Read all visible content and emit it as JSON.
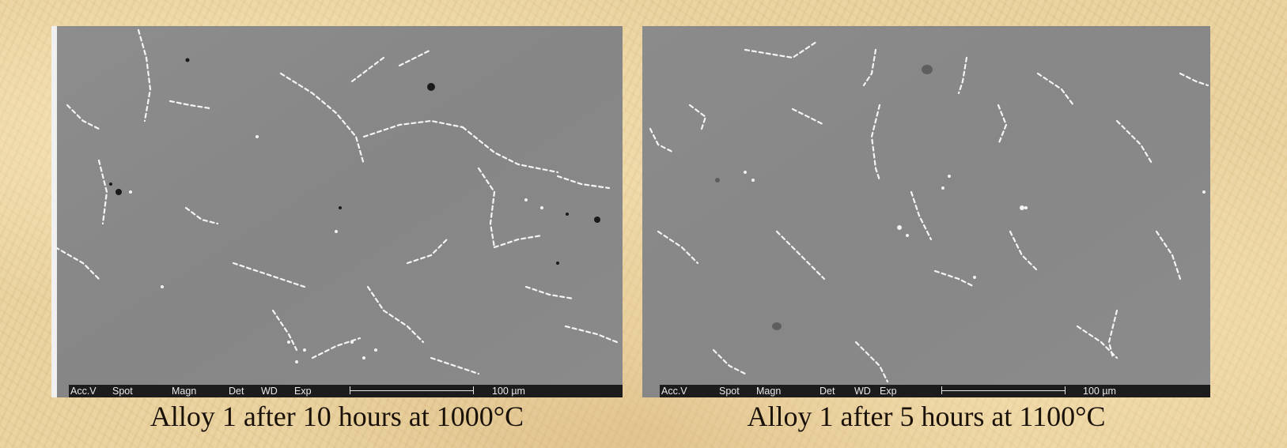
{
  "panels": [
    {
      "databar": {
        "acc": "Acc.V",
        "spot": "Spot",
        "magn": "Magn",
        "det": "Det",
        "wd": "WD",
        "exp": "Exp",
        "scale": "100 µm"
      },
      "caption": "Alloy 1 after 10 hours at 1000°C"
    },
    {
      "databar": {
        "acc": "Acc.V",
        "spot": "Spot",
        "magn": "Magn",
        "det": "Det",
        "wd": "WD",
        "exp": "Exp",
        "scale": "100 µm"
      },
      "caption": "Alloy 1 after 5 hours at 1100°C"
    }
  ],
  "colors": {
    "background": "#e8cf9a",
    "micrograph": "#8a8a8a",
    "precipitate": "#ffffff",
    "databar": "#1c1c1c"
  }
}
